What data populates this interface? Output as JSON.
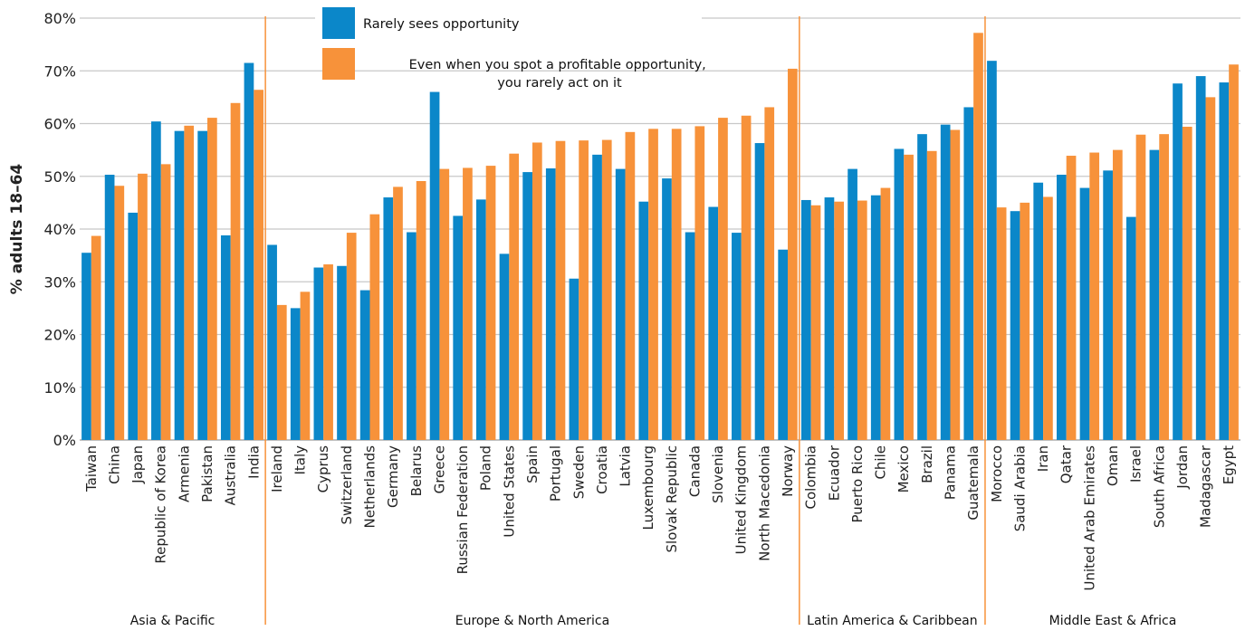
{
  "colors": {
    "series1": "#0b87c9",
    "series2": "#f7923a",
    "divider": "#f7923a",
    "grid": "#c8c8c8"
  },
  "chart_data": {
    "type": "bar",
    "ylabel": "% adults 18–64",
    "ylim": [
      0,
      80
    ],
    "yticks": [
      0,
      10,
      20,
      30,
      40,
      50,
      60,
      70,
      80
    ],
    "ytick_labels": [
      "0%",
      "10%",
      "20%",
      "30%",
      "40%",
      "50%",
      "60%",
      "70%",
      "80%"
    ],
    "grid": true,
    "legend_position": "top-center",
    "categories": [
      "Taiwan",
      "China",
      "Japan",
      "Republic of Korea",
      "Armenia",
      "Pakistan",
      "Australia",
      "India",
      "Ireland",
      "Italy",
      "Cyprus",
      "Switzerland",
      "Netherlands",
      "Germany",
      "Belarus",
      "Greece",
      "Russian Federation",
      "Poland",
      "United States",
      "Spain",
      "Portugal",
      "Sweden",
      "Croatia",
      "Latvia",
      "Luxembourg",
      "Slovak Republic",
      "Canada",
      "Slovenia",
      "United Kingdom",
      "North Macedonia",
      "Norway",
      "Colombia",
      "Ecuador",
      "Puerto Rico",
      "Chile",
      "Mexico",
      "Brazil",
      "Panama",
      "Guatemala",
      "Morocco",
      "Saudi Arabia",
      "Iran",
      "Qatar",
      "United Arab Emirates",
      "Oman",
      "Israel",
      "South Africa",
      "Jordan",
      "Madagascar",
      "Egypt"
    ],
    "groups": [
      {
        "name": "Asia & Pacific",
        "start": 0,
        "end": 7
      },
      {
        "name": "Europe & North America",
        "start": 8,
        "end": 30
      },
      {
        "name": "Latin America & Caribbean",
        "start": 31,
        "end": 38
      },
      {
        "name": "Middle East & Africa",
        "start": 39,
        "end": 49
      }
    ],
    "series": [
      {
        "name": "Rarely sees opportunity",
        "values": [
          35.5,
          50.3,
          43.1,
          60.4,
          58.6,
          58.6,
          38.8,
          71.5,
          37.0,
          25.0,
          32.7,
          33.0,
          28.4,
          46.0,
          39.4,
          66.0,
          42.5,
          45.6,
          35.3,
          50.8,
          51.5,
          30.6,
          54.1,
          51.4,
          45.2,
          49.6,
          39.4,
          44.2,
          39.3,
          56.3,
          36.1,
          45.5,
          46.0,
          51.4,
          46.4,
          55.2,
          58.0,
          59.8,
          63.1,
          71.9,
          43.4,
          48.8,
          50.3,
          47.8,
          51.1,
          42.3,
          55.0,
          67.6,
          69.0,
          67.8
        ]
      },
      {
        "name": "Even when you spot a profitable opportunity, you rarely act on it",
        "name_lines": [
          "Even when you spot a profitable opportunity,",
          "you rarely act on it"
        ],
        "values": [
          38.7,
          48.2,
          50.5,
          52.3,
          59.6,
          61.1,
          63.9,
          66.4,
          25.6,
          28.1,
          33.3,
          39.3,
          42.8,
          48.0,
          49.1,
          51.4,
          51.6,
          52.0,
          54.3,
          56.4,
          56.7,
          56.8,
          56.9,
          58.4,
          59.0,
          59.0,
          59.5,
          61.1,
          61.5,
          63.1,
          70.4,
          44.5,
          45.2,
          45.4,
          47.8,
          54.1,
          54.8,
          58.8,
          77.2,
          44.1,
          45.0,
          46.1,
          53.9,
          54.5,
          55.0,
          57.9,
          58.0,
          59.4,
          65.0,
          71.2
        ]
      }
    ]
  }
}
